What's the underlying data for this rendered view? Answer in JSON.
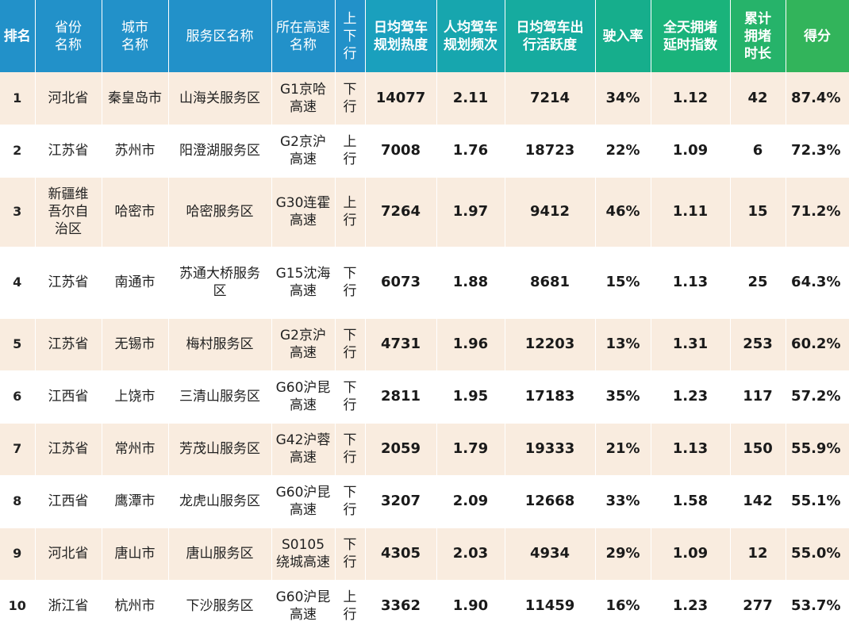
{
  "header": {
    "colors": [
      "#2291c9",
      "#2291c9",
      "#2291c9",
      "#2291c9",
      "#2291c9",
      "#2291c9",
      "#1aa0bd",
      "#17a6ae",
      "#16ab9f",
      "#16ae8c",
      "#1ab37b",
      "#26b36a",
      "#32b45b"
    ],
    "cols": [
      {
        "key": "rank",
        "label": "排名"
      },
      {
        "key": "province",
        "label": "省份名称"
      },
      {
        "key": "city",
        "label": "城市名称"
      },
      {
        "key": "service_area",
        "label": "服务区名称"
      },
      {
        "key": "highway",
        "label": "所在高速名称"
      },
      {
        "key": "direction",
        "label": "上下行"
      },
      {
        "key": "plan_heat",
        "label": "日均驾车规划热度"
      },
      {
        "key": "plan_freq",
        "label": "人均驾车规划频次"
      },
      {
        "key": "activity",
        "label": "日均驾车出行活跃度"
      },
      {
        "key": "entry_rate",
        "label": "驶入率"
      },
      {
        "key": "delay_index",
        "label": "全天拥堵延时指数"
      },
      {
        "key": "jam_hours",
        "label": "累计拥堵时长"
      },
      {
        "key": "score",
        "label": "得分"
      }
    ]
  },
  "rows": [
    {
      "rank": "1",
      "province": "河北省",
      "city": "秦皇岛市",
      "service_area": "山海关服务区",
      "highway": "G1京哈高速",
      "direction": "下行",
      "plan_heat": "14077",
      "plan_freq": "2.11",
      "activity": "7214",
      "entry_rate": "34%",
      "delay_index": "1.12",
      "jam_hours": "42",
      "score": "87.4%"
    },
    {
      "rank": "2",
      "province": "江苏省",
      "city": "苏州市",
      "service_area": "阳澄湖服务区",
      "highway": "G2京沪高速",
      "direction": "上行",
      "plan_heat": "7008",
      "plan_freq": "1.76",
      "activity": "18723",
      "entry_rate": "22%",
      "delay_index": "1.09",
      "jam_hours": "6",
      "score": "72.3%"
    },
    {
      "rank": "3",
      "province": "新疆维吾尔自治区",
      "city": "哈密市",
      "service_area": "哈密服务区",
      "highway": "G30连霍高速",
      "direction": "上行",
      "plan_heat": "7264",
      "plan_freq": "1.97",
      "activity": "9412",
      "entry_rate": "46%",
      "delay_index": "1.11",
      "jam_hours": "15",
      "score": "71.2%"
    },
    {
      "rank": "4",
      "province": "江苏省",
      "city": "南通市",
      "service_area": "苏通大桥服务区",
      "highway": "G15沈海高速",
      "direction": "下行",
      "plan_heat": "6073",
      "plan_freq": "1.88",
      "activity": "8681",
      "entry_rate": "15%",
      "delay_index": "1.13",
      "jam_hours": "25",
      "score": "64.3%"
    },
    {
      "rank": "5",
      "province": "江苏省",
      "city": "无锡市",
      "service_area": "梅村服务区",
      "highway": "G2京沪高速",
      "direction": "下行",
      "plan_heat": "4731",
      "plan_freq": "1.96",
      "activity": "12203",
      "entry_rate": "13%",
      "delay_index": "1.31",
      "jam_hours": "253",
      "score": "60.2%"
    },
    {
      "rank": "6",
      "province": "江西省",
      "city": "上饶市",
      "service_area": "三清山服务区",
      "highway": "G60沪昆高速",
      "direction": "下行",
      "plan_heat": "2811",
      "plan_freq": "1.95",
      "activity": "17183",
      "entry_rate": "35%",
      "delay_index": "1.23",
      "jam_hours": "117",
      "score": "57.2%"
    },
    {
      "rank": "7",
      "province": "江苏省",
      "city": "常州市",
      "service_area": "芳茂山服务区",
      "highway": "G42沪蓉高速",
      "direction": "下行",
      "plan_heat": "2059",
      "plan_freq": "1.79",
      "activity": "19333",
      "entry_rate": "21%",
      "delay_index": "1.13",
      "jam_hours": "150",
      "score": "55.9%"
    },
    {
      "rank": "8",
      "province": "江西省",
      "city": "鹰潭市",
      "service_area": "龙虎山服务区",
      "highway": "G60沪昆高速",
      "direction": "下行",
      "plan_heat": "3207",
      "plan_freq": "2.09",
      "activity": "12668",
      "entry_rate": "33%",
      "delay_index": "1.58",
      "jam_hours": "142",
      "score": "55.1%"
    },
    {
      "rank": "9",
      "province": "河北省",
      "city": "唐山市",
      "service_area": "唐山服务区",
      "highway": "S0105绕城高速",
      "direction": "下行",
      "plan_heat": "4305",
      "plan_freq": "2.03",
      "activity": "4934",
      "entry_rate": "29%",
      "delay_index": "1.09",
      "jam_hours": "12",
      "score": "55.0%"
    },
    {
      "rank": "10",
      "province": "浙江省",
      "city": "杭州市",
      "service_area": "下沙服务区",
      "highway": "G60沪昆高速",
      "direction": "上行",
      "plan_heat": "3362",
      "plan_freq": "1.90",
      "activity": "11459",
      "entry_rate": "16%",
      "delay_index": "1.23",
      "jam_hours": "277",
      "score": "53.7%"
    }
  ]
}
